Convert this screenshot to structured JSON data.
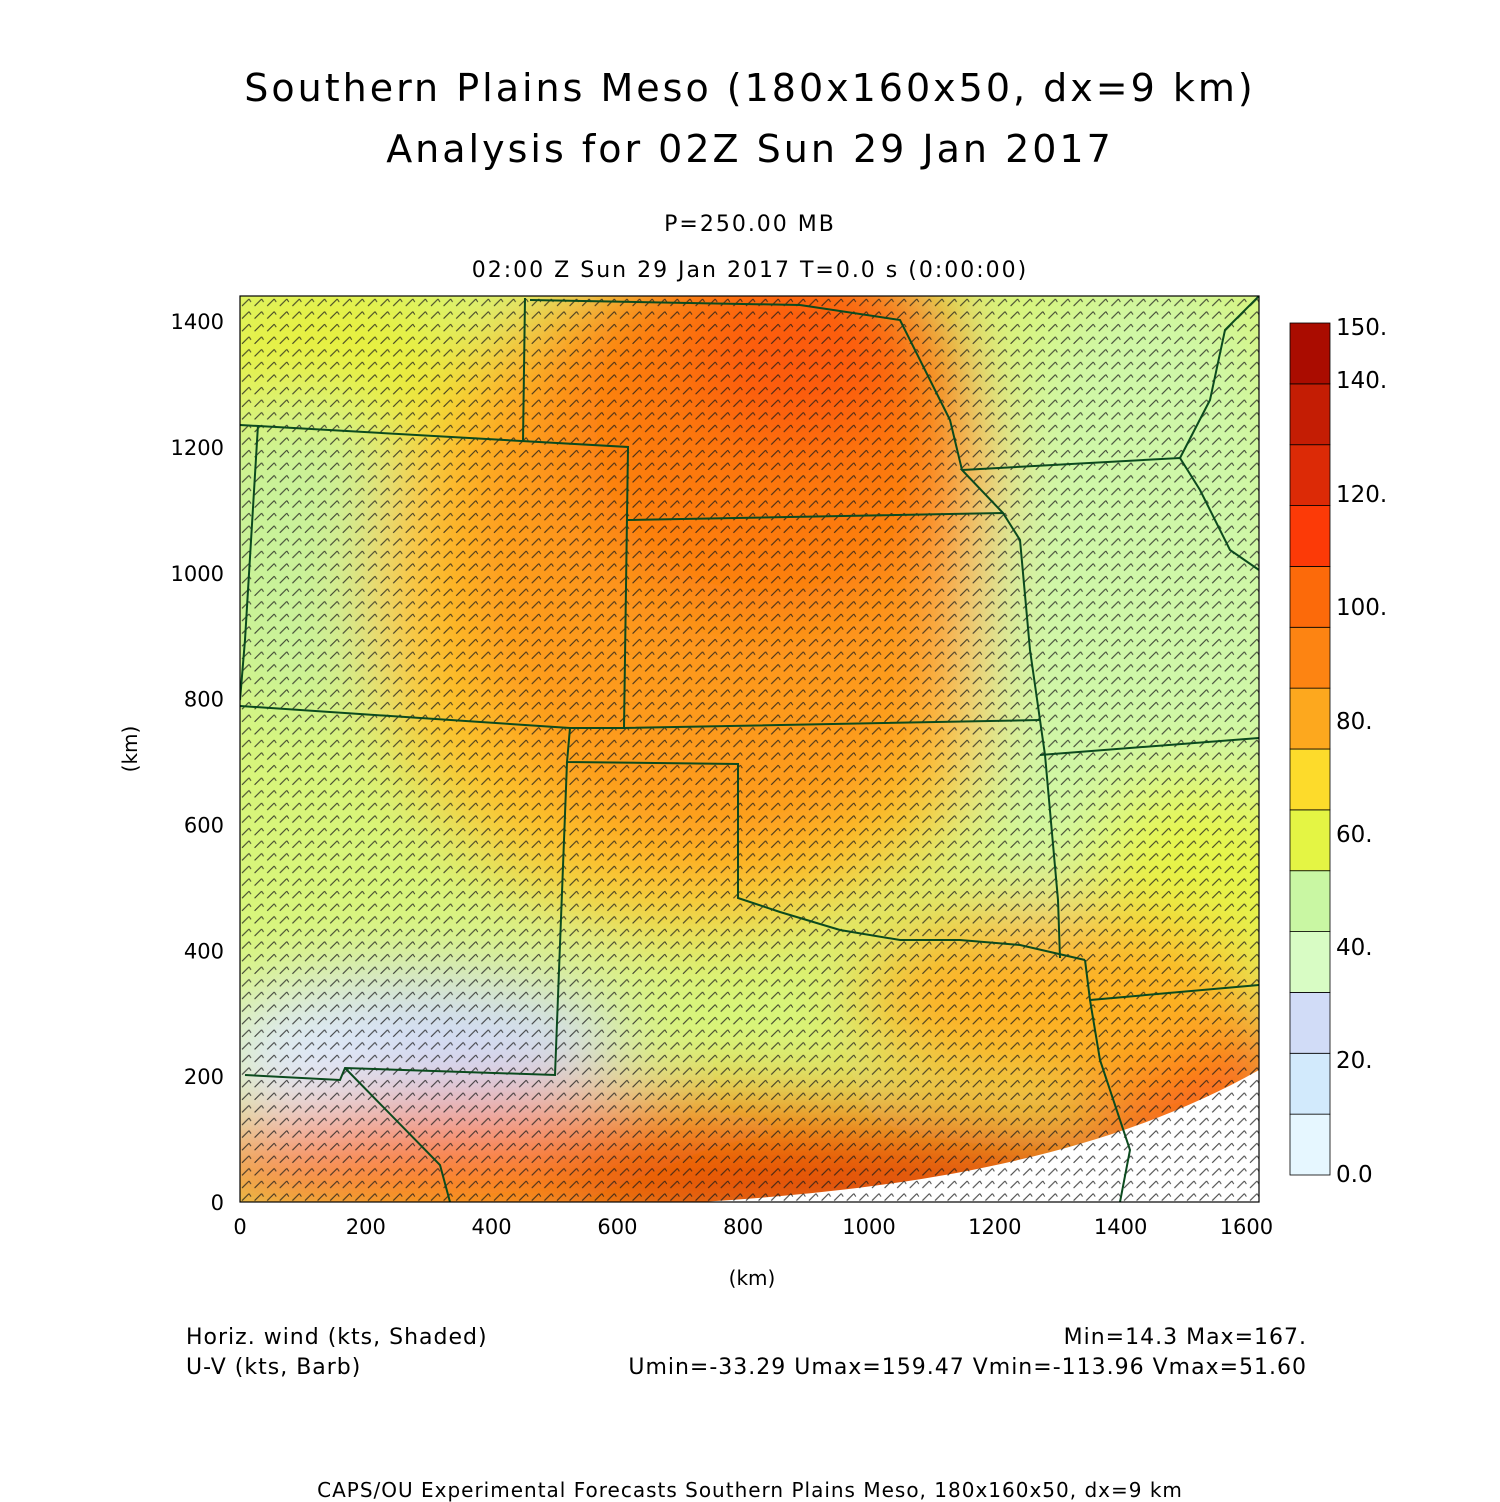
{
  "header": {
    "title_line1": "Southern Plains Meso (180x160x50, dx=9 km)",
    "title_line2": "Analysis for 02Z Sun 29 Jan 2017",
    "level": "P=250.00 MB",
    "valid_time": "02:00 Z Sun 29 Jan 2017    T=0.0 s (0:00:00)"
  },
  "axes": {
    "x_label": "(km)",
    "y_label": "(km)",
    "x_ticks": [
      0,
      200,
      400,
      600,
      800,
      1000,
      1200,
      1400,
      1600
    ],
    "y_ticks": [
      0,
      200,
      400,
      600,
      800,
      1000,
      1200,
      1400
    ],
    "x_range_km": [
      0,
      1620
    ],
    "y_range_km": [
      0,
      1440
    ]
  },
  "colorbar": {
    "labels": [
      "150.",
      "140.",
      "120.",
      "100.",
      "80.",
      "60.",
      "40.",
      "20.",
      "0.0"
    ],
    "colors": [
      "#e6f7ff",
      "#d2eafc",
      "#d1dcf7",
      "#d8fcc4",
      "#c9f7a3",
      "#e4f544",
      "#fddb2b",
      "#fda81e",
      "#fd8412",
      "#fc6a0a",
      "#fc3a07",
      "#dc2a06",
      "#c41d04",
      "#aa0c00"
    ]
  },
  "legend": {
    "field1": "Horiz. wind (kts, Shaded)",
    "field2": "U-V (kts, Barb)",
    "stats1": "Min=14.3 Max=167.",
    "stats2": "Umin=-33.29 Umax=159.47 Vmin=-113.96 Vmax=51.60"
  },
  "footer": {
    "credit": "CAPS/OU Experimental Forecasts  Southern Plains Meso, 180x160x50, dx=9 km"
  },
  "colors": {
    "borders": "#0b4a1e",
    "barbs": "#1a1a1a"
  }
}
